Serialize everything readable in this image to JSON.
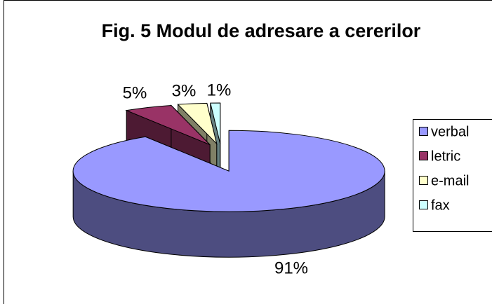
{
  "chart_data": {
    "type": "pie3d",
    "title": "Fig. 5 Modul de adresare a cererilor",
    "categories": [
      "verbal",
      "letric",
      "e-mail",
      "fax"
    ],
    "values": [
      91,
      5,
      3,
      1
    ],
    "value_labels": [
      "91%",
      "5%",
      "3%",
      "1%"
    ],
    "colors": [
      "#9999ff",
      "#993366",
      "#ffffcc",
      "#ccffff"
    ],
    "legend": "right"
  }
}
